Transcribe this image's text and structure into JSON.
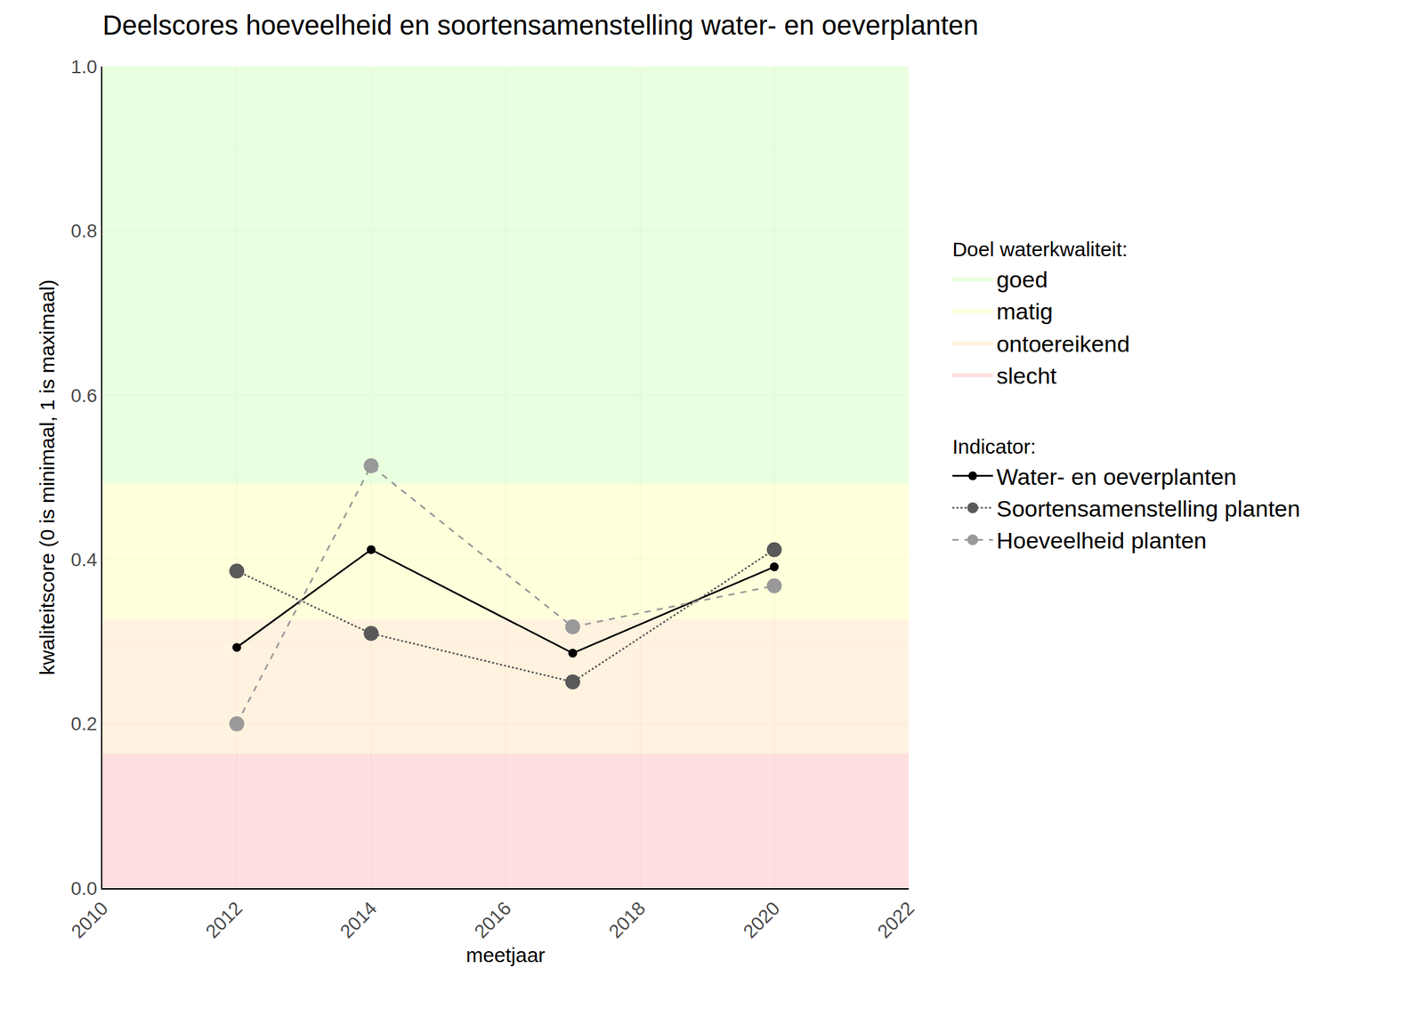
{
  "chart_data": {
    "type": "line",
    "title": "Deelscores hoeveelheid en soortensamenstelling water- en oeverplanten",
    "x_label": "meetjaar",
    "y_label": "kwaliteitscore (0 is minimaal, 1 is maximaal)",
    "x": [
      2012,
      2014,
      2017,
      2020
    ],
    "xlim": [
      2010,
      2022
    ],
    "xticks": [
      2010,
      2012,
      2014,
      2016,
      2018,
      2020,
      2022
    ],
    "ylim": [
      0,
      1
    ],
    "yticks": [
      {
        "value": 0,
        "label": "0.0"
      },
      0.2,
      0.4,
      0.6,
      0.8,
      {
        "value": 1,
        "label": "1.0"
      }
    ],
    "grid": true,
    "legend": "right",
    "bands_title": "Doel waterkwaliteit:",
    "bands": [
      {
        "name": "goed",
        "color": "#e6ffd9",
        "from": 0.492,
        "to": 1.0
      },
      {
        "name": "matig",
        "color": "#ffffd6",
        "from": 0.327,
        "to": 0.492
      },
      {
        "name": "ontoereikend",
        "color": "#fff0d9",
        "from": 0.164,
        "to": 0.327
      },
      {
        "name": "slecht",
        "color": "#ffd9d9",
        "from": 0.0,
        "to": 0.164
      }
    ],
    "legend_title": "Indicator:",
    "series": [
      {
        "name": "Water- en oeverplanten",
        "color": "#000000",
        "line_style": "solid",
        "marker": "circle",
        "values": [
          0.293,
          0.412,
          0.286,
          0.391
        ]
      },
      {
        "name": "Soortensamenstelling planten",
        "color": "#595959",
        "line_style": "dot",
        "marker": "circle",
        "values": [
          0.386,
          0.31,
          0.251,
          0.412
        ]
      },
      {
        "name": "Hoeveelheid planten",
        "color": "#999999",
        "line_style": "dash",
        "marker": "circle",
        "values": [
          0.2,
          0.514,
          0.318,
          0.368
        ]
      }
    ]
  }
}
